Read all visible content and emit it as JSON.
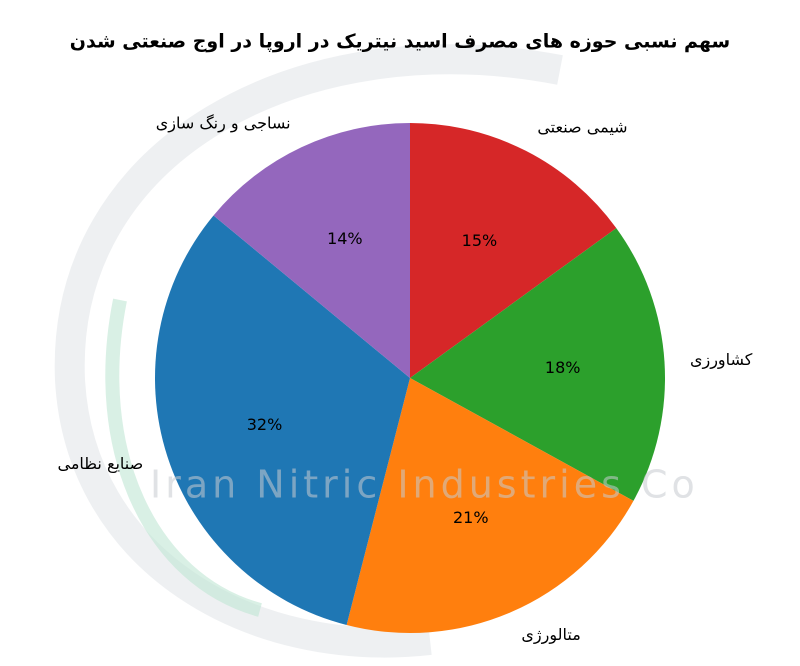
{
  "chart_data": {
    "type": "pie",
    "title": "سهم نسبی حوزه های مصرف اسید نیتریک در اروپا در اوج صنعتی شدن",
    "watermark": "Iran Nitric Industries Co",
    "categories": [
      "شیمی صنعتی",
      "کشاورزی",
      "متالورژی",
      "صنایع نظامی",
      "نساجی و رنگ سازی"
    ],
    "values": [
      15,
      18,
      21,
      32,
      14
    ],
    "value_labels": [
      "15%",
      "18%",
      "21%",
      "32%",
      "14%"
    ],
    "colors": [
      "#d62728",
      "#2ca02c",
      "#ff7f0e",
      "#1f77b4",
      "#9467bd"
    ],
    "start_angle": 90,
    "direction": "clockwise"
  }
}
